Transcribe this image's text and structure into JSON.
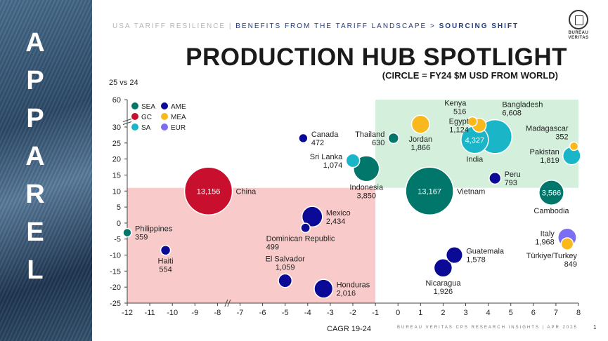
{
  "sidebar": {
    "letters": [
      "A",
      "P",
      "P",
      "A",
      "R",
      "E",
      "L"
    ]
  },
  "header": {
    "crumb_part1": "USA TARIFF RESILIENCE | ",
    "crumb_part2": "BENEFITS FROM THE TARIFF LANDSCAPE > ",
    "crumb_part3": "SOURCING SHIFT",
    "title": "PRODUCTION HUB SPOTLIGHT",
    "subtitle": "(CIRCLE = FY24 $M USD FROM WORLD)"
  },
  "logo": {
    "line1": "BUREAU",
    "line2": "VERITAS"
  },
  "footer": {
    "text": "BUREAU VERITAS CPS RESEARCH INSIGHTS | APR 2025",
    "page": "1"
  },
  "colors": {
    "SEA": "#00776a",
    "GC": "#c8102e",
    "SA": "#1ab6c8",
    "AME": "#0a0a96",
    "MEA": "#f9b81b",
    "EUR": "#7b6ef0",
    "zone_green": "#d4f0dc",
    "zone_red": "#f8caca"
  },
  "chart_data": {
    "type": "scatter",
    "bubble": true,
    "xlabel": "CAGR 19-24",
    "ylabel": "25 vs 24",
    "xlim": [
      -12,
      8
    ],
    "ylim": [
      -25,
      60
    ],
    "y_axis_break": [
      30,
      60
    ],
    "x_axis_break": [
      -8,
      -5
    ],
    "xticks": [
      -12,
      -11,
      -10,
      -9,
      -8,
      -7,
      -6,
      -5,
      -4,
      -3,
      -2,
      -1,
      0,
      1,
      2,
      3,
      4,
      5,
      6,
      7,
      8
    ],
    "yticks": [
      60,
      30,
      25,
      20,
      15,
      10,
      5,
      0,
      -5,
      -10,
      -15,
      -20,
      -25
    ],
    "zones": [
      {
        "name": "growth",
        "x": [
          -1,
          8
        ],
        "y": [
          11,
          60
        ],
        "color": "zone_green"
      },
      {
        "name": "decline",
        "x": [
          -12,
          -1
        ],
        "y": [
          -25,
          11
        ],
        "color": "zone_red"
      }
    ],
    "legend": [
      {
        "key": "SEA",
        "label": "SEA"
      },
      {
        "key": "AME",
        "label": "AME"
      },
      {
        "key": "GC",
        "label": "GC"
      },
      {
        "key": "MEA",
        "label": "MEA"
      },
      {
        "key": "SA",
        "label": "SA"
      },
      {
        "key": "EUR",
        "label": "EUR"
      }
    ],
    "points": [
      {
        "name": "China",
        "value": "13,156",
        "region": "GC",
        "x": -8.4,
        "y": 10,
        "size": 13156,
        "label_inside": "13,156",
        "label": [
          "China"
        ],
        "label_pos": "right"
      },
      {
        "name": "Vietnam",
        "value": "13,167",
        "region": "SEA",
        "x": 1.4,
        "y": 10,
        "size": 13167,
        "label_inside": "13,167",
        "label": [
          "Vietnam"
        ],
        "label_pos": "right"
      },
      {
        "name": "Bangladesh",
        "value": "6,608",
        "region": "SA",
        "x": 4.3,
        "y": 27,
        "size": 6608,
        "label": [
          "Bangladesh",
          "6,608"
        ],
        "label_pos": "above-right"
      },
      {
        "name": "India",
        "value": "4,327",
        "region": "SA",
        "x": 3.4,
        "y": 26,
        "size": 4327,
        "label_inside": "4,327",
        "label": [
          "India"
        ],
        "label_pos": "below"
      },
      {
        "name": "Indonesia",
        "value": "3,850",
        "region": "SEA",
        "x": -1.4,
        "y": 17,
        "size": 3850,
        "label": [
          "Indonesia",
          "3,850"
        ],
        "label_pos": "below"
      },
      {
        "name": "Cambodia",
        "value": "3,566",
        "region": "SEA",
        "x": 6.8,
        "y": 9.5,
        "size": 3566,
        "label_inside": "3,566",
        "label": [
          "Cambodia"
        ],
        "label_pos": "below"
      },
      {
        "name": "Mexico",
        "value": "2,434",
        "region": "AME",
        "x": -3.8,
        "y": 2,
        "size": 2434,
        "label": [
          "Mexico",
          "2,434"
        ],
        "label_pos": "right"
      },
      {
        "name": "Honduras",
        "value": "2,016",
        "region": "AME",
        "x": -3.3,
        "y": -20.5,
        "size": 2016,
        "label": [
          "Honduras",
          "2,016"
        ],
        "label_pos": "right"
      },
      {
        "name": "Italy",
        "value": "1,968",
        "region": "EUR",
        "x": 7.5,
        "y": -4.5,
        "size": 1968,
        "label": [
          "Italy",
          "1,968"
        ],
        "label_pos": "left"
      },
      {
        "name": "Nicaragua",
        "value": "1,926",
        "region": "AME",
        "x": 2.0,
        "y": -14,
        "size": 1926,
        "label": [
          "Nicaragua",
          "1,926"
        ],
        "label_pos": "below"
      },
      {
        "name": "Jordan",
        "value": "1,866",
        "region": "MEA",
        "x": 1.0,
        "y": 33,
        "size": 1866,
        "label": [
          "Jordan",
          "1,866"
        ],
        "label_pos": "below"
      },
      {
        "name": "Pakistan",
        "value": "1,819",
        "region": "SA",
        "x": 7.7,
        "y": 21,
        "size": 1819,
        "label": [
          "Pakistan",
          "1,819"
        ],
        "label_pos": "left"
      },
      {
        "name": "Guatemala",
        "value": "1,578",
        "region": "AME",
        "x": 2.5,
        "y": -10,
        "size": 1578,
        "label": [
          "Guatemala",
          "1,578"
        ],
        "label_pos": "right"
      },
      {
        "name": "Egypt",
        "value": "1,124",
        "region": "MEA",
        "x": 3.6,
        "y": 32,
        "size": 1124,
        "label": [
          "Egypt",
          "1,124"
        ],
        "label_pos": "left"
      },
      {
        "name": "Sri Lanka",
        "value": "1,074",
        "region": "SA",
        "x": -2.0,
        "y": 19.5,
        "size": 1074,
        "label": [
          "Sri Lanka",
          "1,074"
        ],
        "label_pos": "left"
      },
      {
        "name": "El Salvador",
        "value": "1,059",
        "region": "AME",
        "x": -5.0,
        "y": -18,
        "size": 1059,
        "label": [
          "El Salvador",
          "1,059"
        ],
        "label_pos": "above"
      },
      {
        "name": "Türkiye/Turkey",
        "value": "849",
        "region": "MEA",
        "x": 7.5,
        "y": -6.5,
        "size": 849,
        "label": [
          "Türkiye/Turkey",
          "849"
        ],
        "label_pos": "below-left"
      },
      {
        "name": "Peru",
        "value": "793",
        "region": "AME",
        "x": 4.3,
        "y": 14,
        "size": 793,
        "label": [
          "Peru",
          "793"
        ],
        "label_pos": "right"
      },
      {
        "name": "Thailand",
        "value": "630",
        "region": "SEA",
        "x": -0.2,
        "y": 26.5,
        "size": 630,
        "label": [
          "Thailand",
          "630"
        ],
        "label_pos": "left"
      },
      {
        "name": "Haiti",
        "value": "554",
        "region": "AME",
        "x": -10.3,
        "y": -8.5,
        "size": 554,
        "label": [
          "Haiti",
          "554"
        ],
        "label_pos": "below"
      },
      {
        "name": "Kenya",
        "value": "516",
        "region": "MEA",
        "x": 3.3,
        "y": 36,
        "size": 516,
        "label": [
          "Kenya",
          "516"
        ],
        "label_pos": "above-left"
      },
      {
        "name": "Dominican Republic",
        "value": "499",
        "region": "AME",
        "x": -4.1,
        "y": -1.5,
        "size": 499,
        "label": [
          "Dominican Republic",
          "499"
        ],
        "label_pos": "below-right"
      },
      {
        "name": "Canada",
        "value": "472",
        "region": "AME",
        "x": -4.2,
        "y": 26.5,
        "size": 472,
        "label": [
          "Canada",
          "472"
        ],
        "label_pos": "right"
      },
      {
        "name": "Philippines",
        "value": "359",
        "region": "SEA",
        "x": -12.0,
        "y": -3,
        "size": 359,
        "label": [
          "Philippines",
          "359"
        ],
        "label_pos": "right"
      },
      {
        "name": "Madagascar",
        "value": "352",
        "region": "MEA",
        "x": 7.8,
        "y": 24,
        "size": 352,
        "label": [
          "Madagascar",
          "352"
        ],
        "label_pos": "above-left"
      }
    ]
  }
}
